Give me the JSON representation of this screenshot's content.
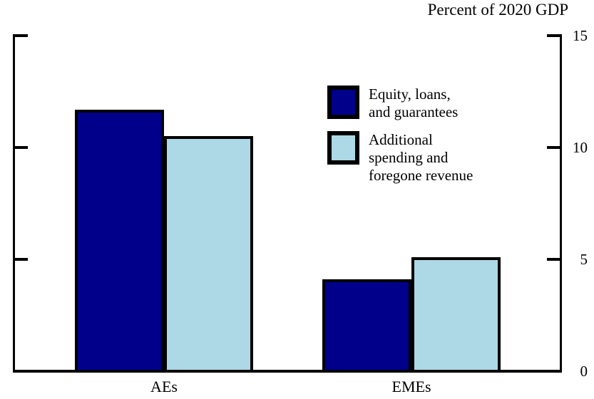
{
  "title": "Percent of 2020 GDP",
  "chart_data": {
    "type": "bar",
    "title": "Percent of 2020 GDP",
    "categories": [
      "AEs",
      "EMEs"
    ],
    "series": [
      {
        "name": "Equity, loans,\nand guarantees",
        "color": "#00008B",
        "values": [
          11.7,
          4.1
        ]
      },
      {
        "name": "Additional\nspending and\nforegone revenue",
        "color": "#ADD8E6",
        "values": [
          10.5,
          5.1
        ]
      }
    ],
    "xlabel": "",
    "ylabel": "Percent of 2020 GDP",
    "ylim": [
      0,
      15
    ],
    "yticks": [
      0,
      5,
      10,
      15
    ],
    "tick_marks_at": [
      5,
      10,
      15
    ],
    "yaxis_side": "right",
    "grid": false,
    "legend_position": "upper middle-right",
    "bar_border_color": "#000000",
    "background_color": "#ffffff"
  }
}
